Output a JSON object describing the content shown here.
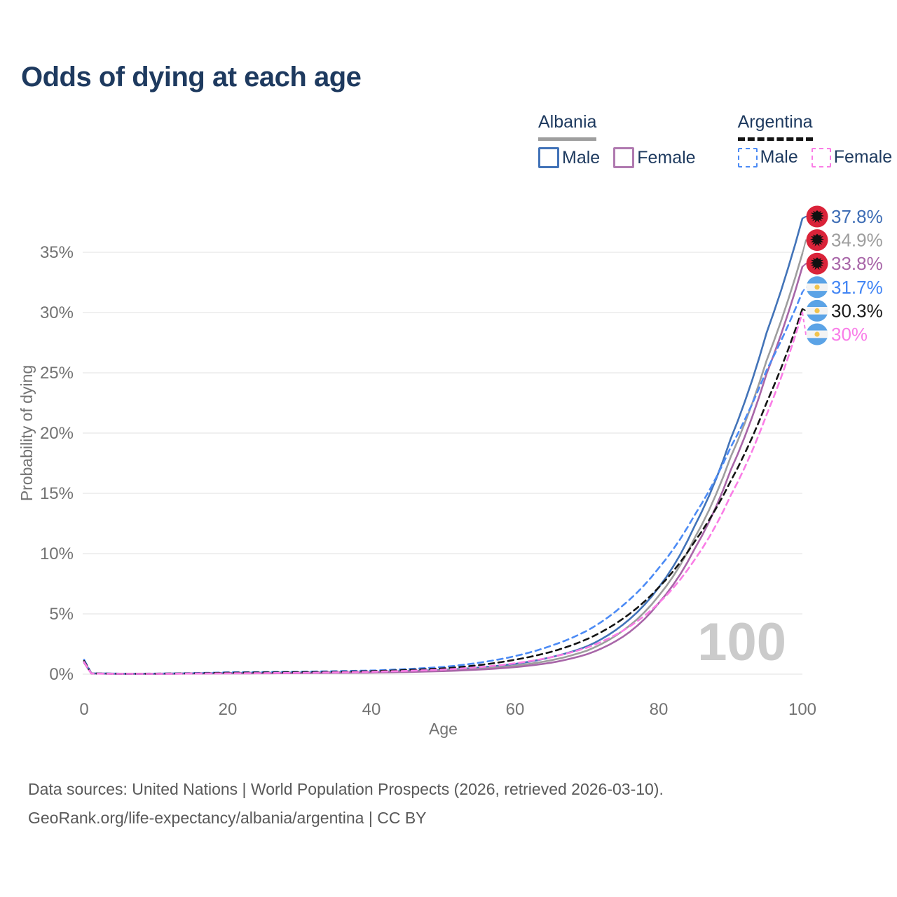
{
  "title": "Odds of dying at each age",
  "legend": {
    "groups": [
      {
        "name": "Albania",
        "line_style": "solid",
        "underline_color": "#9e9e9e",
        "items": [
          {
            "label": "Male",
            "color": "#4273b8"
          },
          {
            "label": "Female",
            "color": "#b07ab0"
          }
        ]
      },
      {
        "name": "Argentina",
        "line_style": "dashed",
        "underline_color": "#141414",
        "items": [
          {
            "label": "Male",
            "color": "#4c8bf5"
          },
          {
            "label": "Female",
            "color": "#fa7de6"
          }
        ]
      }
    ]
  },
  "chart_data": {
    "type": "line",
    "title": "Odds of dying at each age",
    "xlabel": "Age",
    "ylabel": "Probability of dying",
    "xlim": [
      0,
      100
    ],
    "ylim": [
      0,
      38
    ],
    "x_ticks": [
      0,
      20,
      40,
      60,
      80,
      100
    ],
    "y_ticks": [
      "0%",
      "5%",
      "10%",
      "15%",
      "20%",
      "25%",
      "30%",
      "35%"
    ],
    "grid": "horizontal",
    "watermark": "100",
    "legend_position": "top-right",
    "series": [
      {
        "id": "albania-male",
        "country": "Albania",
        "gender": "Male",
        "color": "#4273b8",
        "label_color": "#3e6db5",
        "dashed": false,
        "flag": "albania",
        "end_label": "37.8%",
        "end_value": 37.8,
        "points": [
          [
            0,
            1.1
          ],
          [
            1,
            0.07
          ],
          [
            5,
            0.04
          ],
          [
            10,
            0.04
          ],
          [
            15,
            0.07
          ],
          [
            20,
            0.1
          ],
          [
            30,
            0.13
          ],
          [
            40,
            0.2
          ],
          [
            50,
            0.35
          ],
          [
            55,
            0.55
          ],
          [
            60,
            0.85
          ],
          [
            65,
            1.4
          ],
          [
            70,
            2.3
          ],
          [
            75,
            4.1
          ],
          [
            80,
            7.2
          ],
          [
            85,
            12.3
          ],
          [
            90,
            19.5
          ],
          [
            95,
            28.3
          ],
          [
            100,
            37.8
          ]
        ]
      },
      {
        "id": "albania-total",
        "country": "Albania",
        "gender": "Both",
        "color": "#9e9e9e",
        "label_color": "#9e9e9e",
        "dashed": false,
        "flag": "albania",
        "end_label": "34.9%",
        "end_value": 34.9,
        "points": [
          [
            0,
            1.05
          ],
          [
            1,
            0.06
          ],
          [
            5,
            0.035
          ],
          [
            10,
            0.035
          ],
          [
            15,
            0.06
          ],
          [
            20,
            0.08
          ],
          [
            30,
            0.11
          ],
          [
            40,
            0.17
          ],
          [
            50,
            0.3
          ],
          [
            55,
            0.45
          ],
          [
            60,
            0.7
          ],
          [
            65,
            1.15
          ],
          [
            70,
            1.95
          ],
          [
            75,
            3.6
          ],
          [
            80,
            6.5
          ],
          [
            85,
            11.3
          ],
          [
            90,
            18.0
          ],
          [
            95,
            26.0
          ],
          [
            100,
            34.9
          ]
        ]
      },
      {
        "id": "albania-female",
        "country": "Albania",
        "gender": "Female",
        "color": "#a866a8",
        "label_color": "#a866a8",
        "dashed": false,
        "flag": "albania",
        "end_label": "33.8%",
        "end_value": 33.8,
        "points": [
          [
            0,
            0.95
          ],
          [
            1,
            0.05
          ],
          [
            5,
            0.03
          ],
          [
            10,
            0.03
          ],
          [
            15,
            0.05
          ],
          [
            20,
            0.06
          ],
          [
            30,
            0.08
          ],
          [
            40,
            0.13
          ],
          [
            50,
            0.25
          ],
          [
            55,
            0.38
          ],
          [
            60,
            0.58
          ],
          [
            65,
            0.95
          ],
          [
            70,
            1.65
          ],
          [
            75,
            3.1
          ],
          [
            80,
            5.9
          ],
          [
            85,
            10.4
          ],
          [
            90,
            16.9
          ],
          [
            95,
            24.9
          ],
          [
            100,
            33.8
          ]
        ]
      },
      {
        "id": "argentina-male",
        "country": "Argentina",
        "gender": "Male",
        "color": "#4c8bf5",
        "label_color": "#4285f4",
        "dashed": true,
        "flag": "argentina",
        "end_label": "31.7%",
        "end_value": 31.7,
        "points": [
          [
            0,
            1.2
          ],
          [
            1,
            0.07
          ],
          [
            5,
            0.04
          ],
          [
            10,
            0.045
          ],
          [
            15,
            0.09
          ],
          [
            20,
            0.15
          ],
          [
            30,
            0.2
          ],
          [
            40,
            0.3
          ],
          [
            50,
            0.6
          ],
          [
            55,
            0.95
          ],
          [
            60,
            1.5
          ],
          [
            65,
            2.35
          ],
          [
            70,
            3.6
          ],
          [
            75,
            5.7
          ],
          [
            80,
            8.8
          ],
          [
            85,
            13.2
          ],
          [
            90,
            18.8
          ],
          [
            95,
            25.2
          ],
          [
            100,
            31.7
          ]
        ]
      },
      {
        "id": "argentina-total",
        "country": "Argentina",
        "gender": "Both",
        "color": "#141414",
        "label_color": "#1a1a1a",
        "dashed": true,
        "flag": "argentina",
        "end_label": "30.3%",
        "end_value": 30.3,
        "points": [
          [
            0,
            1.1
          ],
          [
            1,
            0.06
          ],
          [
            5,
            0.035
          ],
          [
            10,
            0.04
          ],
          [
            15,
            0.07
          ],
          [
            20,
            0.12
          ],
          [
            30,
            0.16
          ],
          [
            40,
            0.25
          ],
          [
            50,
            0.48
          ],
          [
            55,
            0.75
          ],
          [
            60,
            1.2
          ],
          [
            65,
            1.85
          ],
          [
            70,
            2.9
          ],
          [
            75,
            4.6
          ],
          [
            80,
            7.2
          ],
          [
            85,
            11.0
          ],
          [
            90,
            16.0
          ],
          [
            95,
            22.5
          ],
          [
            100,
            30.3
          ]
        ]
      },
      {
        "id": "argentina-female",
        "country": "Argentina",
        "gender": "Female",
        "color": "#fa7de6",
        "label_color": "#f97ce8",
        "dashed": true,
        "flag": "argentina",
        "end_label": "30%",
        "end_value": 30.0,
        "points": [
          [
            0,
            1.0
          ],
          [
            1,
            0.05
          ],
          [
            5,
            0.03
          ],
          [
            10,
            0.03
          ],
          [
            15,
            0.05
          ],
          [
            20,
            0.07
          ],
          [
            30,
            0.11
          ],
          [
            40,
            0.2
          ],
          [
            50,
            0.38
          ],
          [
            55,
            0.58
          ],
          [
            60,
            0.9
          ],
          [
            65,
            1.4
          ],
          [
            70,
            2.2
          ],
          [
            75,
            3.6
          ],
          [
            80,
            5.9
          ],
          [
            85,
            9.5
          ],
          [
            90,
            14.8
          ],
          [
            95,
            21.5
          ],
          [
            100,
            30.0
          ]
        ]
      }
    ]
  },
  "colors": {
    "title": "#1e3a5f",
    "tick_label": "#737373",
    "gridline": "#ececec",
    "watermark": "#cbcbcb",
    "footer": "#595959",
    "albania_flag_red": "#da2339",
    "argentina_flag_blue": "#5ba3e6",
    "argentina_flag_sun": "#f2c34c"
  },
  "footer": {
    "line1": "Data sources: United Nations | World Population Prospects (2026, retrieved 2026-03-10).",
    "line2": "GeoRank.org/life-expectancy/albania/argentina | CC BY"
  }
}
